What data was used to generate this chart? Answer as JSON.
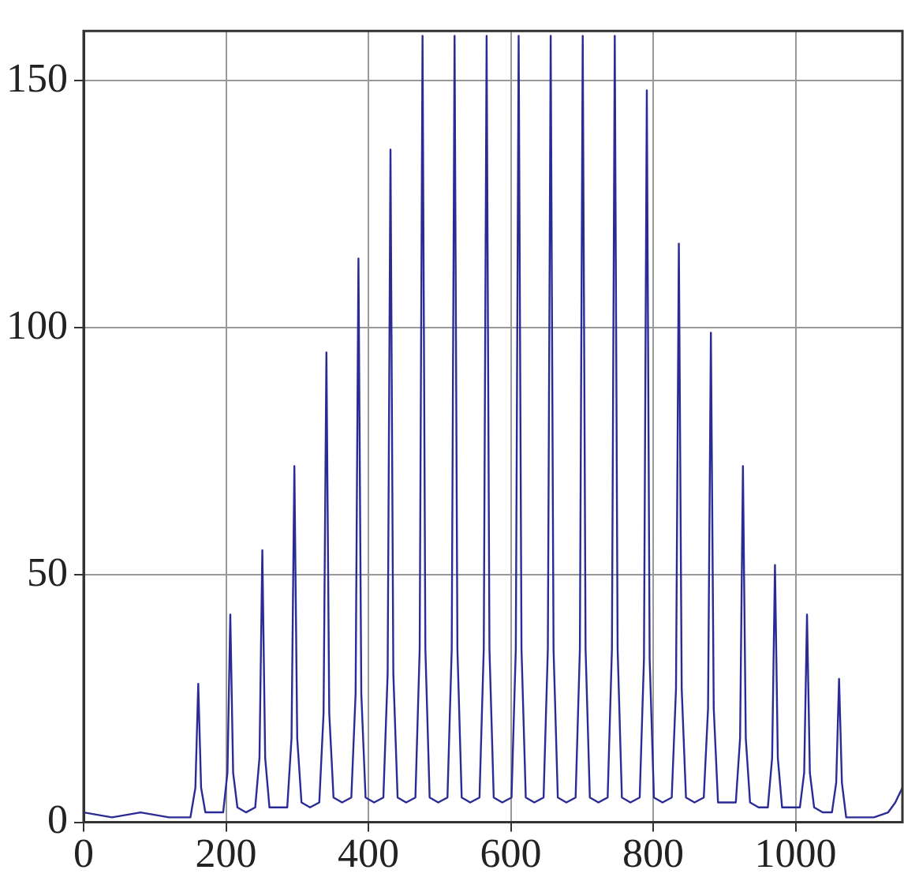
{
  "chart_data": {
    "type": "line",
    "xlim": [
      0,
      1150
    ],
    "ylim": [
      0,
      160
    ],
    "xticks": [
      0,
      200,
      400,
      600,
      800,
      1000
    ],
    "yticks": [
      0,
      50,
      100,
      150
    ],
    "grid": true,
    "marker": "none",
    "line_style": "solid",
    "series": [
      {
        "color": "#2b2b96",
        "x": [
          0,
          40,
          80,
          120,
          150,
          157,
          161,
          165,
          171,
          183,
          196,
          202,
          206,
          210,
          216,
          228,
          241,
          247,
          251,
          255,
          261,
          273,
          286,
          292,
          296,
          300,
          306,
          318,
          331,
          337,
          341,
          345,
          351,
          363,
          376,
          382,
          386,
          390,
          396,
          408,
          421,
          427,
          431,
          435,
          441,
          453,
          466,
          472,
          476,
          480,
          486,
          498,
          511,
          517,
          521,
          525,
          531,
          543,
          556,
          562,
          566,
          570,
          576,
          588,
          601,
          607,
          611,
          615,
          621,
          633,
          646,
          652,
          656,
          660,
          666,
          678,
          691,
          697,
          701,
          705,
          711,
          723,
          736,
          742,
          746,
          750,
          756,
          768,
          781,
          787,
          791,
          795,
          801,
          813,
          826,
          832,
          836,
          840,
          846,
          858,
          871,
          877,
          881,
          885,
          891,
          903,
          916,
          922,
          926,
          930,
          936,
          948,
          961,
          967,
          971,
          975,
          981,
          993,
          1006,
          1012,
          1016,
          1020,
          1026,
          1038,
          1051,
          1057,
          1061,
          1065,
          1071,
          1085,
          1110,
          1130,
          1140,
          1150
        ],
        "values": [
          2,
          1,
          2,
          1,
          1,
          7,
          28,
          7,
          2,
          2,
          2,
          10,
          42,
          10,
          3,
          2,
          3,
          13,
          55,
          13,
          3,
          3,
          3,
          17,
          72,
          17,
          4,
          3,
          4,
          22,
          95,
          22,
          5,
          4,
          5,
          26,
          114,
          26,
          5,
          4,
          5,
          30,
          136,
          30,
          5,
          4,
          5,
          35,
          159,
          35,
          5,
          4,
          5,
          35,
          159,
          35,
          5,
          4,
          5,
          35,
          159,
          35,
          5,
          4,
          5,
          35,
          159,
          35,
          5,
          4,
          5,
          35,
          159,
          35,
          5,
          4,
          5,
          35,
          159,
          35,
          5,
          4,
          5,
          35,
          159,
          35,
          5,
          4,
          5,
          33,
          148,
          33,
          5,
          4,
          5,
          27,
          117,
          27,
          5,
          4,
          5,
          23,
          99,
          23,
          4,
          4,
          4,
          17,
          72,
          17,
          4,
          3,
          3,
          13,
          52,
          13,
          3,
          3,
          3,
          10,
          42,
          10,
          3,
          2,
          2,
          8,
          29,
          8,
          1,
          1,
          1,
          2,
          4,
          7
        ]
      }
    ]
  }
}
